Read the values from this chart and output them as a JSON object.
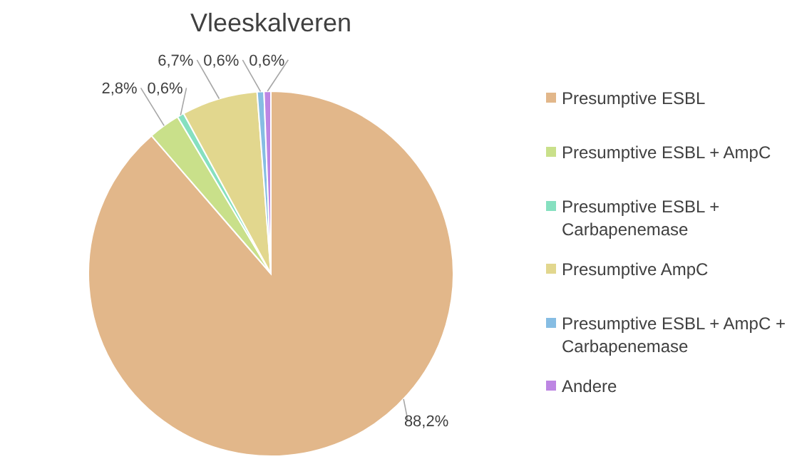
{
  "chart_data": {
    "type": "pie",
    "title": "Vleeskalveren",
    "categories": [
      "Presumptive ESBL",
      "Presumptive ESBL + AmpC",
      "Presumptive ESBL + Carbapenemase",
      "Presumptive AmpC",
      "Presumptive ESBL + AmpC + Carbapenemase",
      "Andere"
    ],
    "values": [
      88.2,
      2.8,
      0.6,
      6.7,
      0.6,
      0.6
    ],
    "value_labels": [
      "88,2%",
      "2,8%",
      "0,6%",
      "6,7%",
      "0,6%",
      "0,6%"
    ],
    "colors": [
      "#e2b78a",
      "#c9e08a",
      "#86e0c0",
      "#e2d78e",
      "#86bde3",
      "#bd86e3"
    ],
    "legend": "right"
  }
}
